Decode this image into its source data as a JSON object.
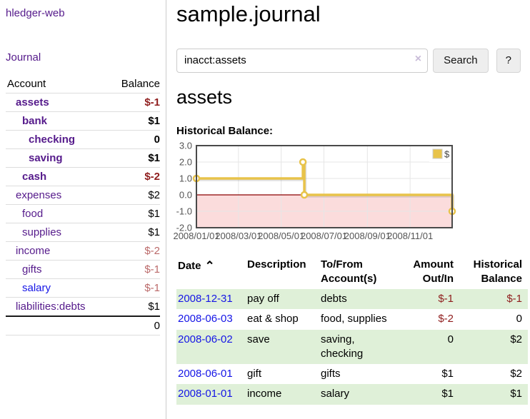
{
  "app": {
    "brand": "hledger-web",
    "nav": {
      "journal": "Journal"
    }
  },
  "sidebar": {
    "header": {
      "account": "Account",
      "balance": "Balance"
    },
    "rows": [
      {
        "account": "assets",
        "balance": "$-1",
        "level": 1,
        "bold": true
      },
      {
        "account": "bank",
        "balance": "$1",
        "level": 2,
        "bold": true
      },
      {
        "account": "checking",
        "balance": "0",
        "level": 3,
        "bold": true
      },
      {
        "account": "saving",
        "balance": "$1",
        "level": 3,
        "bold": true
      },
      {
        "account": "cash",
        "balance": "$-2",
        "level": 2,
        "bold": true
      },
      {
        "account": "expenses",
        "balance": "$2",
        "level": 1,
        "bold": false
      },
      {
        "account": "food",
        "balance": "$1",
        "level": 2,
        "bold": false
      },
      {
        "account": "supplies",
        "balance": "$1",
        "level": 2,
        "bold": false
      },
      {
        "account": "income",
        "balance": "$-2",
        "level": 1,
        "bold": false
      },
      {
        "account": "gifts",
        "balance": "$-1",
        "level": 2,
        "bold": false
      },
      {
        "account": "salary",
        "balance": "$-1",
        "level": 2,
        "bold": false,
        "unvisited": true
      },
      {
        "account": "liabilities:debts",
        "balance": "$1",
        "level": 1,
        "bold": false
      }
    ],
    "total": "0"
  },
  "main": {
    "title": "sample.journal",
    "search": {
      "value": "inacct:assets",
      "clear_icon": "×",
      "search_button": "Search",
      "help_button": "?"
    },
    "account_heading": "assets",
    "chart_title": "Historical Balance:"
  },
  "chart_data": {
    "type": "line",
    "step": true,
    "title": "Historical Balance:",
    "series": [
      {
        "name": "$",
        "color": "#e8c34a",
        "points": [
          [
            "2008-01-01",
            1
          ],
          [
            "2008-06-01",
            2
          ],
          [
            "2008-06-03",
            0
          ],
          [
            "2008-12-31",
            -1
          ]
        ]
      }
    ],
    "x_tick_labels": [
      "2008/01/01",
      "2008/03/01",
      "2008/05/01",
      "2008/07/01",
      "2008/09/01",
      "2008/11/01"
    ],
    "x_tick_days": [
      0,
      60,
      121,
      182,
      244,
      305
    ],
    "x_grid_days": [
      60,
      121,
      182,
      244,
      305
    ],
    "x_range_days": [
      0,
      365
    ],
    "y_ticks": [
      "3.0",
      "2.0",
      "1.0",
      "0.0",
      "-1.0",
      "-2.0"
    ],
    "y_tick_values": [
      3,
      2,
      1,
      0,
      -1,
      -2
    ],
    "ylim": [
      -2,
      3
    ],
    "grid": true,
    "legend_position": "top-right",
    "legend_label": "$",
    "negative_region_color": "#fbdcdc",
    "zero_line_color": "#8b0000",
    "grid_color": "#e6e6e6",
    "border_color": "#4a4a4a",
    "tick_label_color": "#545454"
  },
  "register": {
    "headers": {
      "date": "Date",
      "sort_icon": "⌃",
      "description": "Description",
      "accounts": "To/From Account(s)",
      "amount": "Amount Out/In",
      "balance": "Historical Balance"
    },
    "rows": [
      {
        "date": "2008-12-31",
        "description": "pay off",
        "accounts": "debts",
        "amount": "$-1",
        "balance": "$-1"
      },
      {
        "date": "2008-06-03",
        "description": "eat & shop",
        "accounts": "food, supplies",
        "amount": "$-2",
        "balance": "0"
      },
      {
        "date": "2008-06-02",
        "description": "save",
        "accounts": "saving, checking",
        "amount": "0",
        "balance": "$2"
      },
      {
        "date": "2008-06-01",
        "description": "gift",
        "accounts": "gifts",
        "amount": "$1",
        "balance": "$2"
      },
      {
        "date": "2008-01-01",
        "description": "income",
        "accounts": "salary",
        "amount": "$1",
        "balance": "$1"
      }
    ]
  },
  "colors": {
    "link_purple": "#551a8b",
    "link_blue": "#1515e6",
    "neg_strong": "#8f1d1d",
    "neg_faded": "#bb6a6a",
    "stripe_green": "#dff0d8",
    "divider": "#cccccc",
    "row_border": "#dddddd",
    "btn_bg": "#eeeeee",
    "btn_border": "#d5d5d5",
    "total_border": "#1a1a1a",
    "chart_line": "#e8c34a"
  }
}
